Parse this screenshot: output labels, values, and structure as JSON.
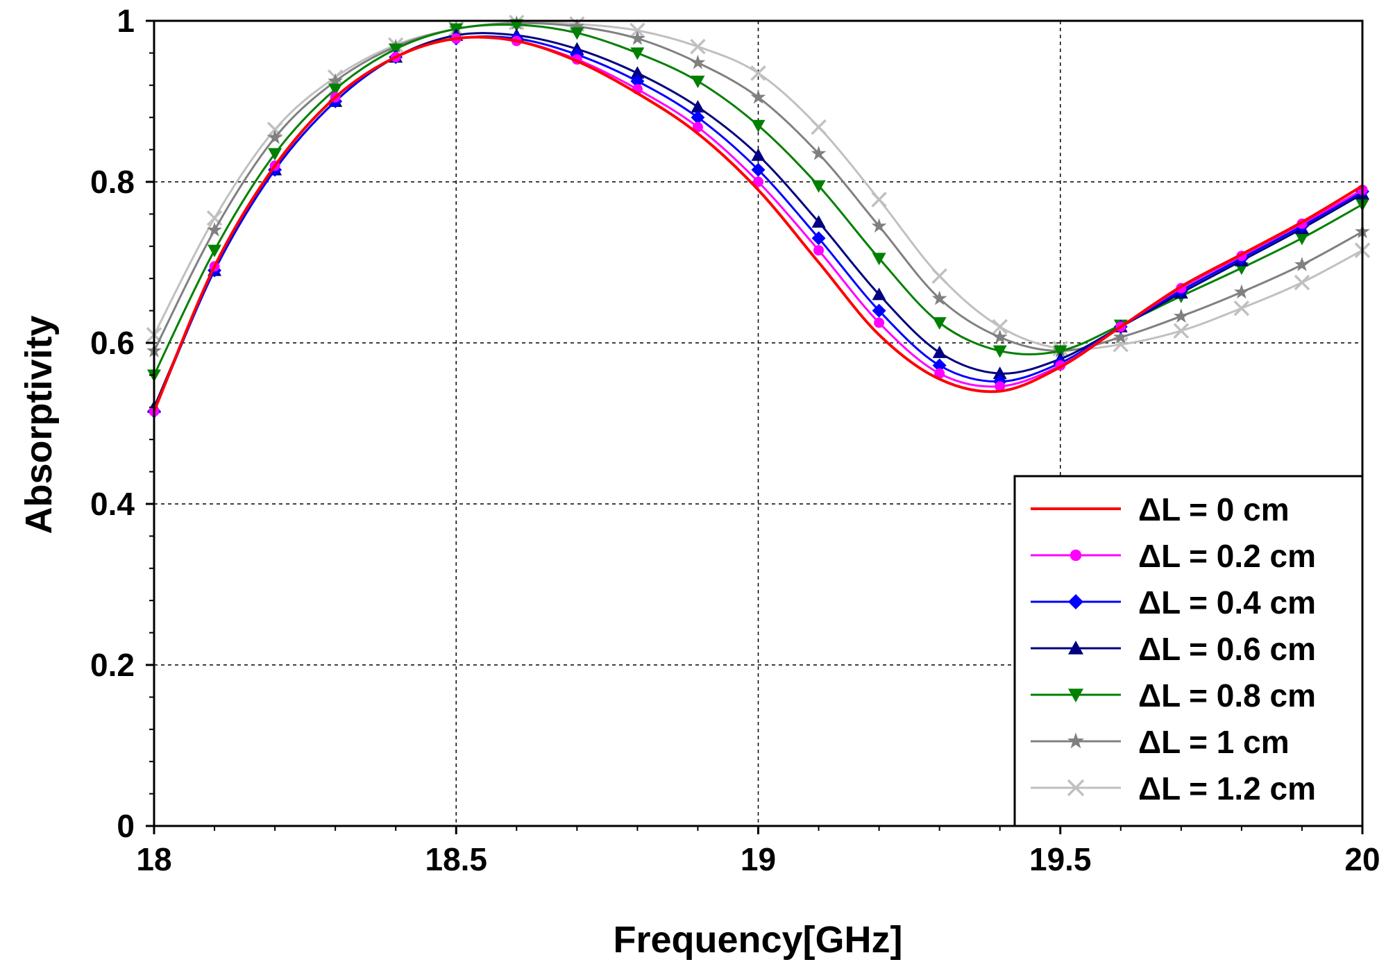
{
  "chart_data": {
    "type": "line",
    "title": "",
    "xlabel": "Frequency[GHz]",
    "ylabel": "Absorptivity",
    "xlim": [
      18,
      20
    ],
    "ylim": [
      0,
      1
    ],
    "xticks": [
      18,
      18.5,
      19,
      19.5,
      20
    ],
    "xtick_labels": [
      "18",
      "18.5",
      "19",
      "19.5",
      "20"
    ],
    "yticks": [
      0,
      0.2,
      0.4,
      0.6,
      0.8,
      1
    ],
    "ytick_labels": [
      "0",
      "0.2",
      "0.4",
      "0.6",
      "0.8",
      "1"
    ],
    "grid": true,
    "legend_position": "bottom-right",
    "x": [
      18.0,
      18.1,
      18.2,
      18.3,
      18.4,
      18.5,
      18.6,
      18.7,
      18.8,
      18.9,
      19.0,
      19.1,
      19.2,
      19.3,
      19.4,
      19.5,
      19.6,
      19.7,
      19.8,
      19.9,
      20.0
    ],
    "series": [
      {
        "name": "ΔL = 0 cm",
        "color": "#ff0000",
        "marker": "none",
        "values": [
          0.515,
          0.695,
          0.82,
          0.905,
          0.955,
          0.978,
          0.975,
          0.95,
          0.91,
          0.86,
          0.79,
          0.7,
          0.61,
          0.555,
          0.54,
          0.57,
          0.62,
          0.67,
          0.71,
          0.75,
          0.795
        ]
      },
      {
        "name": "ΔL = 0.2 cm",
        "color": "#ff00ff",
        "marker": "circle",
        "values": [
          0.515,
          0.695,
          0.82,
          0.905,
          0.955,
          0.978,
          0.975,
          0.952,
          0.915,
          0.868,
          0.8,
          0.715,
          0.625,
          0.562,
          0.546,
          0.572,
          0.62,
          0.668,
          0.708,
          0.748,
          0.79
        ]
      },
      {
        "name": "ΔL = 0.4 cm",
        "color": "#0000ff",
        "marker": "diamond",
        "values": [
          0.515,
          0.69,
          0.815,
          0.9,
          0.955,
          0.978,
          0.978,
          0.958,
          0.925,
          0.88,
          0.815,
          0.73,
          0.64,
          0.572,
          0.552,
          0.575,
          0.62,
          0.665,
          0.705,
          0.745,
          0.788
        ]
      },
      {
        "name": "ΔL = 0.6 cm",
        "color": "#000080",
        "marker": "triangle-up",
        "values": [
          0.52,
          0.69,
          0.815,
          0.9,
          0.955,
          0.982,
          0.982,
          0.965,
          0.935,
          0.893,
          0.833,
          0.75,
          0.66,
          0.588,
          0.562,
          0.58,
          0.62,
          0.662,
          0.702,
          0.742,
          0.785
        ]
      },
      {
        "name": "ΔL = 0.8 cm",
        "color": "#008000",
        "marker": "triangle-down",
        "values": [
          0.56,
          0.715,
          0.835,
          0.915,
          0.965,
          0.99,
          0.995,
          0.985,
          0.96,
          0.925,
          0.87,
          0.795,
          0.705,
          0.625,
          0.59,
          0.59,
          0.622,
          0.658,
          0.693,
          0.73,
          0.772
        ]
      },
      {
        "name": "ΔL = 1 cm",
        "color": "#808080",
        "marker": "star",
        "values": [
          0.59,
          0.74,
          0.855,
          0.925,
          0.968,
          0.99,
          0.997,
          0.993,
          0.978,
          0.948,
          0.905,
          0.835,
          0.745,
          0.655,
          0.607,
          0.59,
          0.607,
          0.633,
          0.663,
          0.697,
          0.738
        ]
      },
      {
        "name": "ΔL = 1.2 cm",
        "color": "#c0c0c0",
        "marker": "x",
        "values": [
          0.61,
          0.755,
          0.865,
          0.93,
          0.97,
          0.99,
          0.998,
          0.996,
          0.988,
          0.968,
          0.935,
          0.868,
          0.778,
          0.683,
          0.62,
          0.593,
          0.598,
          0.615,
          0.643,
          0.675,
          0.715
        ]
      }
    ]
  }
}
